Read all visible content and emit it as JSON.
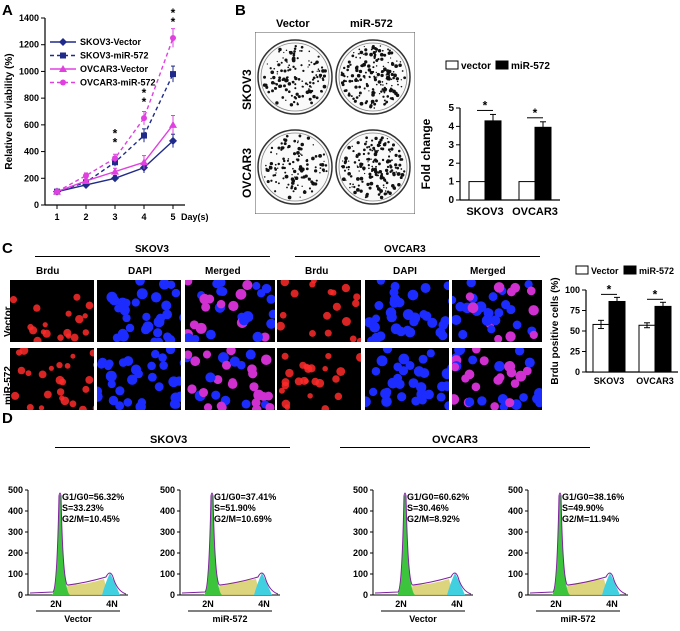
{
  "panels": {
    "a": "A",
    "b": "B",
    "c": "C",
    "d": "D"
  },
  "colors": {
    "navy": "#1f2a8a",
    "pink": "#e040e0",
    "black": "#000000",
    "white": "#ffffff",
    "red_cell": "#ff2a2a",
    "blue_cell": "#1c2cff",
    "merged_cell": "#d030d0",
    "g1": "#3cc43c",
    "s_phase": "#d8d070",
    "g2": "#40d0e0",
    "trace": "#8020a0"
  },
  "panel_a": {
    "chart_data": {
      "type": "line",
      "ylabel": "Relative cell viability (%)",
      "xlabel": "Day(s)",
      "x": [
        1,
        2,
        3,
        4,
        5
      ],
      "ylim": [
        0,
        1400
      ],
      "yticks": [
        0,
        200,
        400,
        600,
        800,
        1000,
        1200,
        1400
      ],
      "series": [
        {
          "name": "SKOV3-Vector",
          "values": [
            100,
            150,
            200,
            280,
            480
          ],
          "errors": [
            10,
            15,
            20,
            40,
            50
          ],
          "color": "#1f2a8a",
          "dashed": false,
          "marker": "diamond"
        },
        {
          "name": "SKOV3-miR-572",
          "values": [
            100,
            170,
            320,
            520,
            980
          ],
          "errors": [
            10,
            15,
            30,
            50,
            60
          ],
          "color": "#1f2a8a",
          "dashed": true,
          "marker": "square"
        },
        {
          "name": "OVCAR3-Vector",
          "values": [
            100,
            180,
            250,
            320,
            600
          ],
          "errors": [
            10,
            20,
            25,
            50,
            70
          ],
          "color": "#e040e0",
          "dashed": false,
          "marker": "triangle"
        },
        {
          "name": "OVCAR3-miR-572",
          "values": [
            100,
            220,
            350,
            650,
            1250
          ],
          "errors": [
            10,
            20,
            30,
            50,
            70
          ],
          "color": "#e040e0",
          "dashed": true,
          "marker": "circle"
        }
      ],
      "significance": [
        {
          "x": 3,
          "marks": [
            "*",
            "*"
          ]
        },
        {
          "x": 4,
          "marks": [
            "*",
            "*"
          ]
        },
        {
          "x": 5,
          "marks": [
            "*",
            "*"
          ]
        }
      ]
    }
  },
  "panel_b": {
    "col_labels": [
      "Vector",
      "miR-572"
    ],
    "row_labels": [
      "SKOV3",
      "OVCAR3"
    ],
    "chart_data": {
      "type": "bar",
      "ylabel": "Fold change",
      "categories": [
        "SKOV3",
        "OVCAR3"
      ],
      "ylim": [
        0,
        5
      ],
      "yticks": [
        0,
        1,
        2,
        3,
        4,
        5
      ],
      "series": [
        {
          "name": "vector",
          "values": [
            1,
            1
          ],
          "errors": [
            0,
            0
          ],
          "color": "#ffffff"
        },
        {
          "name": "miR-572",
          "values": [
            4.3,
            3.95
          ],
          "errors": [
            0.35,
            0.3
          ],
          "color": "#000000"
        }
      ],
      "significance": [
        "*",
        "*"
      ]
    }
  },
  "panel_c": {
    "groups": [
      {
        "title": "SKOV3"
      },
      {
        "title": "OVCAR3"
      }
    ],
    "col_labels": [
      "Brdu",
      "DAPI",
      "Merged"
    ],
    "row_labels": [
      "Vector",
      "miR-572"
    ],
    "chart_data": {
      "type": "bar",
      "ylabel": "Brdu positive cells (%)",
      "categories": [
        "SKOV3",
        "OVCAR3"
      ],
      "ylim": [
        0,
        100
      ],
      "yticks": [
        0,
        25,
        50,
        75,
        100
      ],
      "series": [
        {
          "name": "Vector",
          "values": [
            58,
            57
          ],
          "errors": [
            5,
            3
          ],
          "color": "#ffffff"
        },
        {
          "name": "miR-572",
          "values": [
            86,
            80
          ],
          "errors": [
            5,
            5
          ],
          "color": "#000000"
        }
      ],
      "significance": [
        "*",
        "*"
      ]
    }
  },
  "panel_d": {
    "groups": [
      {
        "title": "SKOV3"
      },
      {
        "title": "OVCAR3"
      }
    ],
    "yticks": [
      0,
      100,
      200,
      300,
      400,
      500
    ],
    "peak_labels": [
      "2N",
      "4N"
    ],
    "plots": [
      {
        "label": "Vector",
        "g1": "G1/G0=56.32%",
        "s": "S=33.23%",
        "g2": "G2/M=10.45%"
      },
      {
        "label": "miR-572",
        "g1": "G1/G0=37.41%",
        "s": "S=51.90%",
        "g2": "G2/M=10.69%"
      },
      {
        "label": "Vector",
        "g1": "G1/G0=60.62%",
        "s": "S=30.46%",
        "g2": "G2/M=8.92%"
      },
      {
        "label": "miR-572",
        "g1": "G1/G0=38.16%",
        "s": "S=49.90%",
        "g2": "G2/M=11.94%"
      }
    ]
  }
}
